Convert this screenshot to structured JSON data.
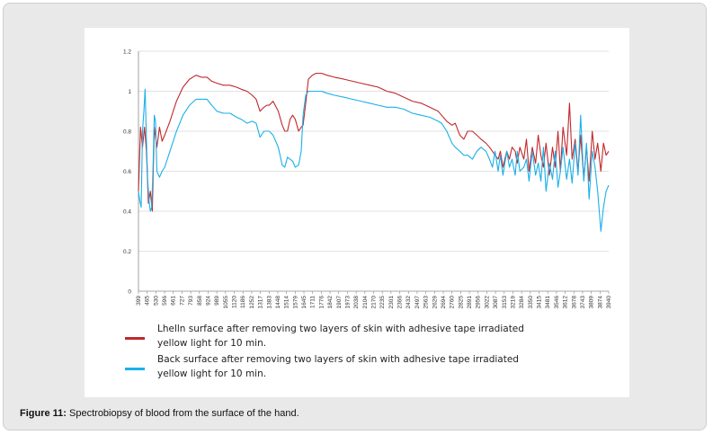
{
  "caption": {
    "label": "Figure 11:",
    "text": " Spectrobiopsy of blood from the surface of the hand."
  },
  "chart_data": {
    "type": "line",
    "title": "",
    "xlabel": "",
    "ylabel": "",
    "ylim": [
      0,
      1.2
    ],
    "yticks": [
      "0",
      "0.2",
      "0.4",
      "0.6",
      "0.8",
      "1",
      "1.2"
    ],
    "grid": true,
    "legend_position": "bottom",
    "xticks": [
      "399",
      "465",
      "530",
      "596",
      "661",
      "727",
      "793",
      "858",
      "924",
      "989",
      "1055",
      "1120",
      "1186",
      "1252",
      "1317",
      "1383",
      "1448",
      "1514",
      "1579",
      "1645",
      "1711",
      "1776",
      "1842",
      "1907",
      "1973",
      "2038",
      "2104",
      "2170",
      "2235",
      "2301",
      "2366",
      "2432",
      "2497",
      "2563",
      "2629",
      "2694",
      "2760",
      "2825",
      "2891",
      "2956",
      "3022",
      "3087",
      "3153",
      "3219",
      "3284",
      "3350",
      "3415",
      "3481",
      "3546",
      "3612",
      "3678",
      "3743",
      "3809",
      "3874",
      "3940"
    ],
    "x_range": [
      399,
      4000
    ],
    "series": [
      {
        "name": "Lhelln surface after removing two layers of skin with adhesive tape irradiated yellow light for 10 min.",
        "color": "#c0282d",
        "x": [
          399,
          415,
          430,
          445,
          460,
          475,
          490,
          505,
          520,
          540,
          560,
          580,
          600,
          640,
          690,
          740,
          790,
          840,
          880,
          924,
          960,
          1000,
          1050,
          1100,
          1150,
          1186,
          1230,
          1270,
          1300,
          1330,
          1360,
          1383,
          1400,
          1430,
          1470,
          1500,
          1520,
          1540,
          1560,
          1580,
          1600,
          1625,
          1645,
          1660,
          1680,
          1700,
          1730,
          1760,
          1776,
          1800,
          1842,
          1900,
          1973,
          2038,
          2104,
          2170,
          2235,
          2301,
          2366,
          2432,
          2497,
          2563,
          2629,
          2694,
          2720,
          2760,
          2800,
          2825,
          2860,
          2891,
          2920,
          2956,
          2990,
          3022,
          3060,
          3087,
          3110,
          3130,
          3153,
          3170,
          3190,
          3219,
          3240,
          3260,
          3284,
          3300,
          3320,
          3350,
          3370,
          3390,
          3415,
          3440,
          3460,
          3481,
          3500,
          3520,
          3546,
          3570,
          3590,
          3612,
          3630,
          3650,
          3678,
          3700,
          3720,
          3743,
          3765,
          3785,
          3809,
          3830,
          3850,
          3874,
          3895,
          3915,
          3940,
          3960,
          3980,
          4000
        ],
        "values": [
          0.5,
          0.82,
          0.72,
          0.82,
          0.7,
          0.44,
          0.5,
          0.4,
          0.82,
          0.72,
          0.82,
          0.75,
          0.78,
          0.85,
          0.95,
          1.02,
          1.06,
          1.08,
          1.07,
          1.07,
          1.05,
          1.04,
          1.03,
          1.03,
          1.02,
          1.01,
          1.0,
          0.98,
          0.96,
          0.9,
          0.92,
          0.93,
          0.93,
          0.95,
          0.9,
          0.83,
          0.8,
          0.8,
          0.86,
          0.88,
          0.86,
          0.8,
          0.82,
          0.83,
          0.94,
          1.06,
          1.08,
          1.09,
          1.09,
          1.09,
          1.08,
          1.07,
          1.06,
          1.05,
          1.04,
          1.03,
          1.02,
          1.0,
          0.99,
          0.97,
          0.95,
          0.94,
          0.92,
          0.9,
          0.88,
          0.85,
          0.83,
          0.84,
          0.78,
          0.76,
          0.8,
          0.8,
          0.78,
          0.76,
          0.74,
          0.72,
          0.7,
          0.68,
          0.66,
          0.7,
          0.62,
          0.7,
          0.66,
          0.72,
          0.7,
          0.64,
          0.72,
          0.66,
          0.76,
          0.6,
          0.72,
          0.64,
          0.78,
          0.68,
          0.62,
          0.74,
          0.58,
          0.72,
          0.62,
          0.8,
          0.6,
          0.82,
          0.68,
          0.94,
          0.66,
          0.76,
          0.6,
          0.78,
          0.56,
          0.72,
          0.55,
          0.8,
          0.66,
          0.74,
          0.6,
          0.74,
          0.68,
          0.7
        ]
      },
      {
        "name": "Back surface after removing two layers of skin with adhesive tape irradiated yellow light for 10 min.",
        "color": "#1ab0e8",
        "x": [
          399,
          410,
          420,
          430,
          440,
          450,
          460,
          470,
          480,
          490,
          500,
          510,
          520,
          530,
          540,
          560,
          580,
          600,
          640,
          690,
          740,
          790,
          840,
          880,
          924,
          960,
          1000,
          1050,
          1100,
          1150,
          1186,
          1230,
          1270,
          1300,
          1330,
          1360,
          1383,
          1400,
          1430,
          1470,
          1500,
          1520,
          1540,
          1560,
          1580,
          1600,
          1625,
          1645,
          1660,
          1680,
          1700,
          1730,
          1760,
          1776,
          1800,
          1842,
          1900,
          1973,
          2038,
          2104,
          2170,
          2235,
          2301,
          2366,
          2432,
          2497,
          2563,
          2629,
          2694,
          2720,
          2760,
          2800,
          2825,
          2860,
          2891,
          2920,
          2956,
          2990,
          3022,
          3060,
          3087,
          3110,
          3130,
          3153,
          3170,
          3190,
          3219,
          3240,
          3260,
          3284,
          3300,
          3320,
          3350,
          3370,
          3390,
          3415,
          3440,
          3460,
          3481,
          3500,
          3520,
          3546,
          3570,
          3590,
          3612,
          3630,
          3650,
          3678,
          3700,
          3720,
          3743,
          3765,
          3785,
          3809,
          3830,
          3850,
          3874,
          3895,
          3915,
          3940,
          3960,
          3980,
          4000
        ],
        "values": [
          0.5,
          0.45,
          0.42,
          0.8,
          0.9,
          1.01,
          0.75,
          0.55,
          0.45,
          0.4,
          0.42,
          0.6,
          0.88,
          0.85,
          0.6,
          0.57,
          0.6,
          0.62,
          0.7,
          0.8,
          0.88,
          0.93,
          0.96,
          0.96,
          0.96,
          0.93,
          0.9,
          0.89,
          0.89,
          0.87,
          0.86,
          0.84,
          0.85,
          0.84,
          0.77,
          0.8,
          0.8,
          0.8,
          0.78,
          0.72,
          0.63,
          0.62,
          0.67,
          0.66,
          0.65,
          0.62,
          0.63,
          0.7,
          0.88,
          0.98,
          1.0,
          1.0,
          1.0,
          1.0,
          1.0,
          0.99,
          0.98,
          0.97,
          0.96,
          0.95,
          0.94,
          0.93,
          0.92,
          0.92,
          0.91,
          0.89,
          0.88,
          0.87,
          0.85,
          0.84,
          0.8,
          0.74,
          0.72,
          0.7,
          0.68,
          0.68,
          0.66,
          0.7,
          0.72,
          0.7,
          0.66,
          0.62,
          0.7,
          0.6,
          0.68,
          0.58,
          0.7,
          0.62,
          0.66,
          0.58,
          0.7,
          0.6,
          0.62,
          0.66,
          0.55,
          0.7,
          0.58,
          0.64,
          0.55,
          0.72,
          0.5,
          0.64,
          0.56,
          0.7,
          0.52,
          0.6,
          0.72,
          0.56,
          0.66,
          0.54,
          0.74,
          0.58,
          0.88,
          0.55,
          0.74,
          0.46,
          0.7,
          0.62,
          0.5,
          0.3,
          0.42,
          0.5,
          0.53
        ]
      }
    ],
    "legend": [
      {
        "line1": "Lhelln surface after removing two layers of skin with adhesive tape irradiated",
        "line2": "yellow light for 10 min."
      },
      {
        "line1": "Back surface after removing two layers of skin with adhesive tape irradiated",
        "line2": "yellow light for 10 min."
      }
    ]
  }
}
